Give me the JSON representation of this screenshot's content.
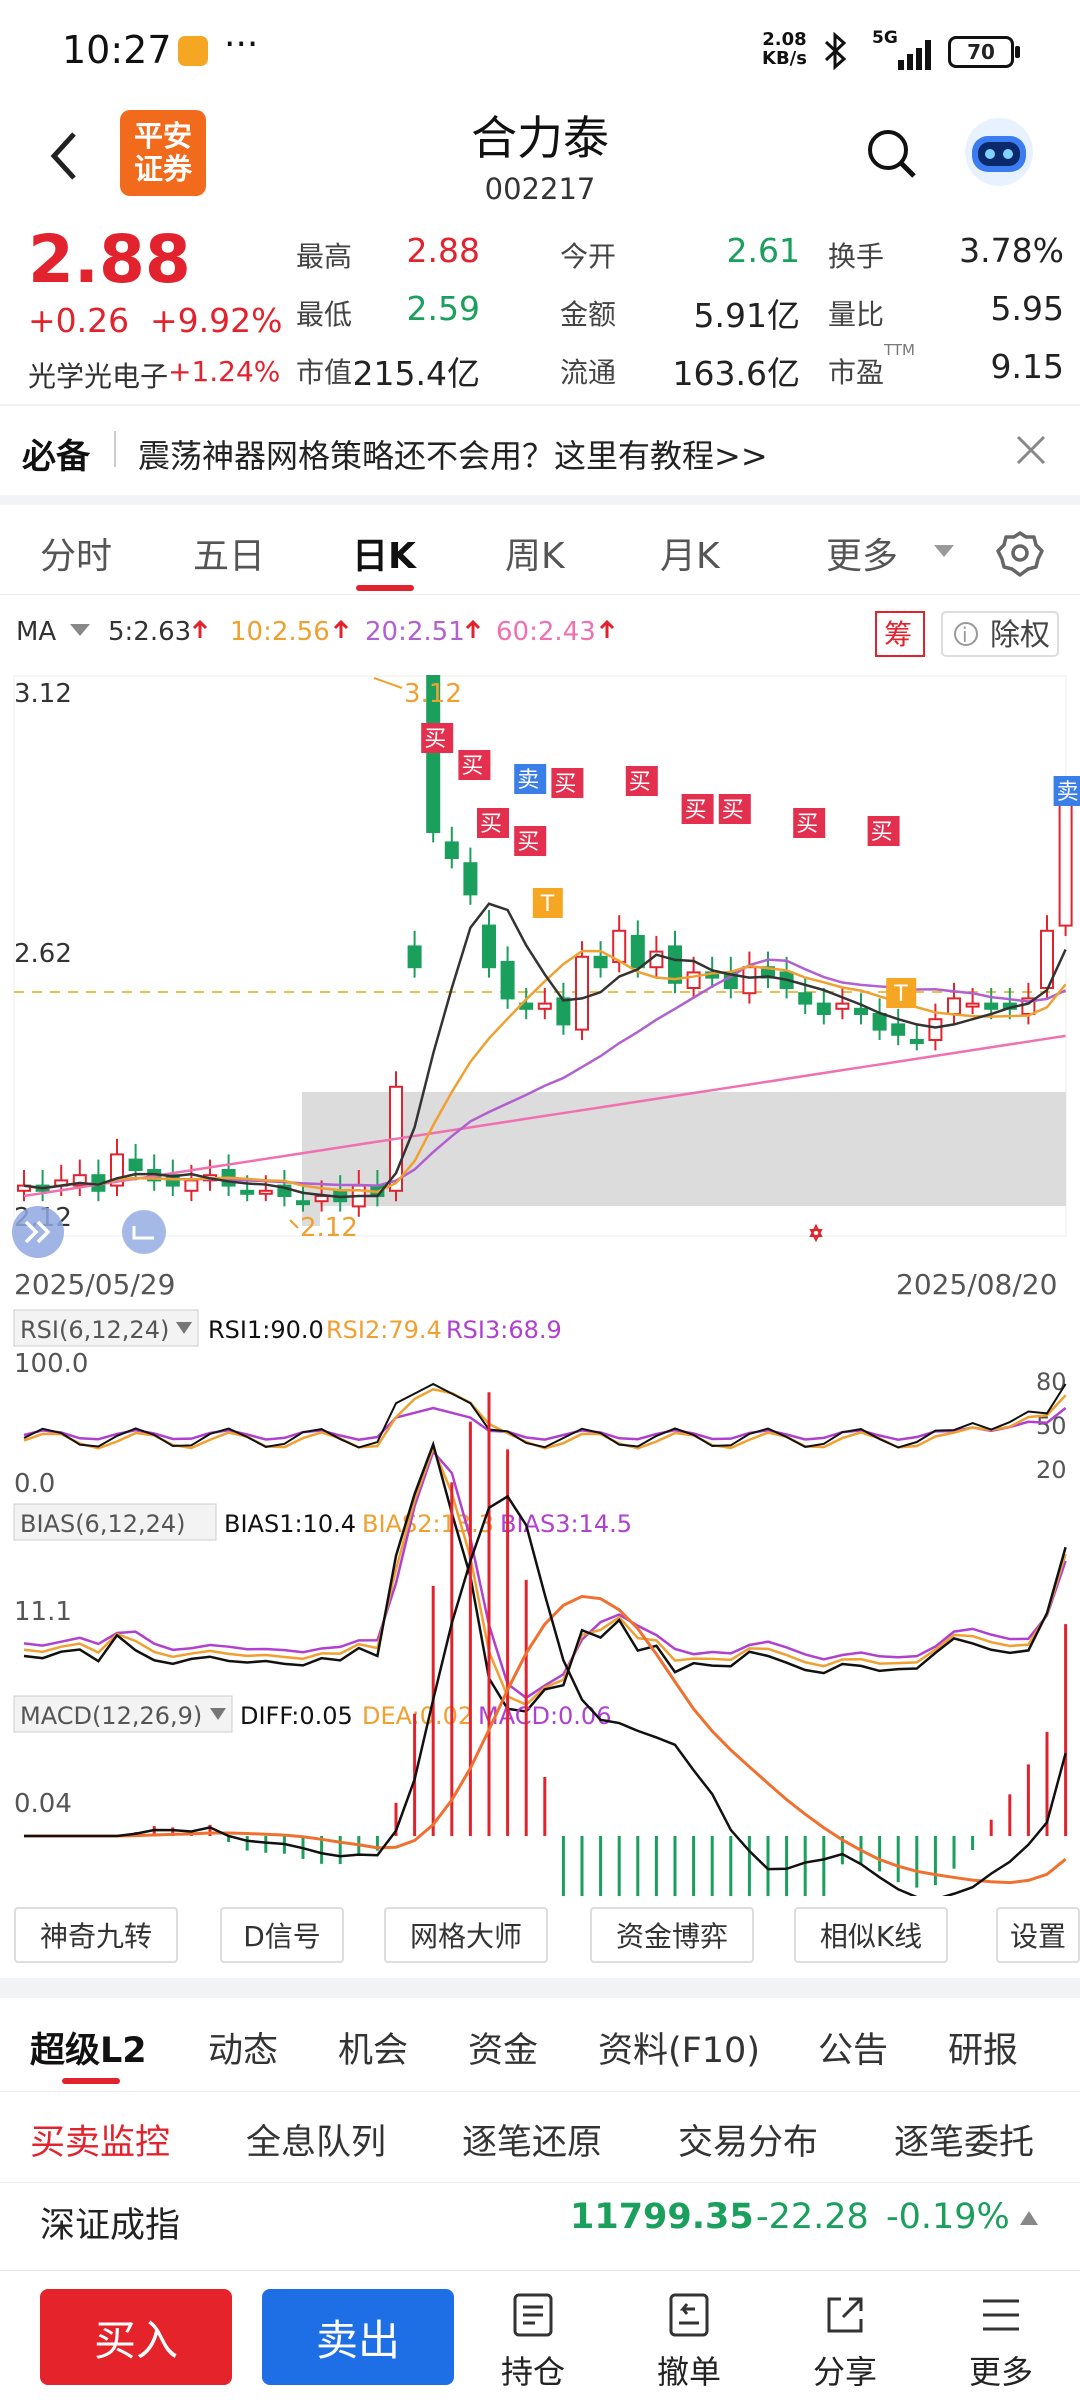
{
  "status": {
    "time": "10:27",
    "dots": "···",
    "speed_top": "2.08",
    "speed_unit": "KB/s",
    "net": "5G",
    "battery": "70"
  },
  "header": {
    "back_icon": "chevron-left-icon",
    "logo_line1": "平安",
    "logo_line2": "证券",
    "title": "合力泰",
    "code": "002217"
  },
  "quote": {
    "price": "2.88",
    "change": "+0.26",
    "change_pct": "+9.92%",
    "sector_name": "光学光电子",
    "sector_pct": "+1.24%",
    "fields": [
      {
        "label": "最高",
        "value": "2.88",
        "color": "#e2232e"
      },
      {
        "label": "今开",
        "value": "2.61",
        "color": "#1a9f5c"
      },
      {
        "label": "换手",
        "value": "3.78%",
        "color": "#222"
      },
      {
        "label": "最低",
        "value": "2.59",
        "color": "#1a9f5c"
      },
      {
        "label": "金额",
        "value": "5.91亿",
        "color": "#222"
      },
      {
        "label": "量比",
        "value": "5.95",
        "color": "#222"
      },
      {
        "label": "市值",
        "value": "215.4亿",
        "color": "#222"
      },
      {
        "label": "流通",
        "value": "163.6亿",
        "color": "#222"
      },
      {
        "label": "市盈",
        "value": "9.15",
        "color": "#222"
      }
    ],
    "ttm": "TTM"
  },
  "banner": {
    "tag": "必备",
    "text": "震荡神器网格策略还不会用？这里有教程>>"
  },
  "periods": {
    "items": [
      "分时",
      "五日",
      "日K",
      "周K",
      "月K",
      "更多"
    ],
    "active": "日K"
  },
  "ma": {
    "label": "MA",
    "ma5": "5:2.63",
    "ma10": "10:2.56",
    "ma20": "20:2.51",
    "ma60": "60:2.43",
    "chou": "筹",
    "chuquan": "除权"
  },
  "kchart": {
    "ytop": "3.12",
    "ymid": "2.62",
    "ybot_label": "2.12",
    "high_label": "3.12",
    "low_label": "2.12",
    "date_start": "2025/05/29",
    "date_end": "2025/08/20",
    "colors": {
      "up": "#e2232e",
      "down": "#1a9f5c",
      "ma5": "#333333",
      "ma10": "#f0a030",
      "ma20": "#b060d0",
      "ma60": "#f070b0"
    }
  },
  "rsi": {
    "name": "RSI(6,12,24)",
    "v1": "RSI1:90.0",
    "v2": "RSI2:79.4",
    "v3": "RSI3:68.9",
    "top": "100.0",
    "bottom": "0.0",
    "r80": "80",
    "r50": "50",
    "r20": "20"
  },
  "bias": {
    "name": "BIAS(6,12,24)",
    "v1": "BIAS1:10.4",
    "v2": "BIAS2:13.3",
    "v3": "BIAS3:14.5",
    "level": "11.1"
  },
  "macd": {
    "name": "MACD(12,26,9)",
    "diff": "DIFF:0.05",
    "dea": "DEA:0.02",
    "macd": "MACD:0.06",
    "level": "0.04"
  },
  "tools": [
    "神奇九转",
    "D信号",
    "网格大师",
    "资金博弈",
    "相似K线",
    "设置"
  ],
  "tabs1": [
    "超级L2",
    "动态",
    "机会",
    "资金",
    "资料(F10)",
    "公告",
    "研报"
  ],
  "tabs2": [
    "买卖监控",
    "全息队列",
    "逐笔还原",
    "交易分布",
    "逐笔委托"
  ],
  "index": {
    "name": "深证成指",
    "value": "11799.35",
    "change": "-22.28",
    "pct": "-0.19%"
  },
  "bottom": {
    "buy": "买入",
    "sell": "卖出",
    "items": [
      "持仓",
      "撤单",
      "分享",
      "更多"
    ]
  },
  "signals": {
    "buy": "买",
    "sell": "卖",
    "t": "T"
  }
}
